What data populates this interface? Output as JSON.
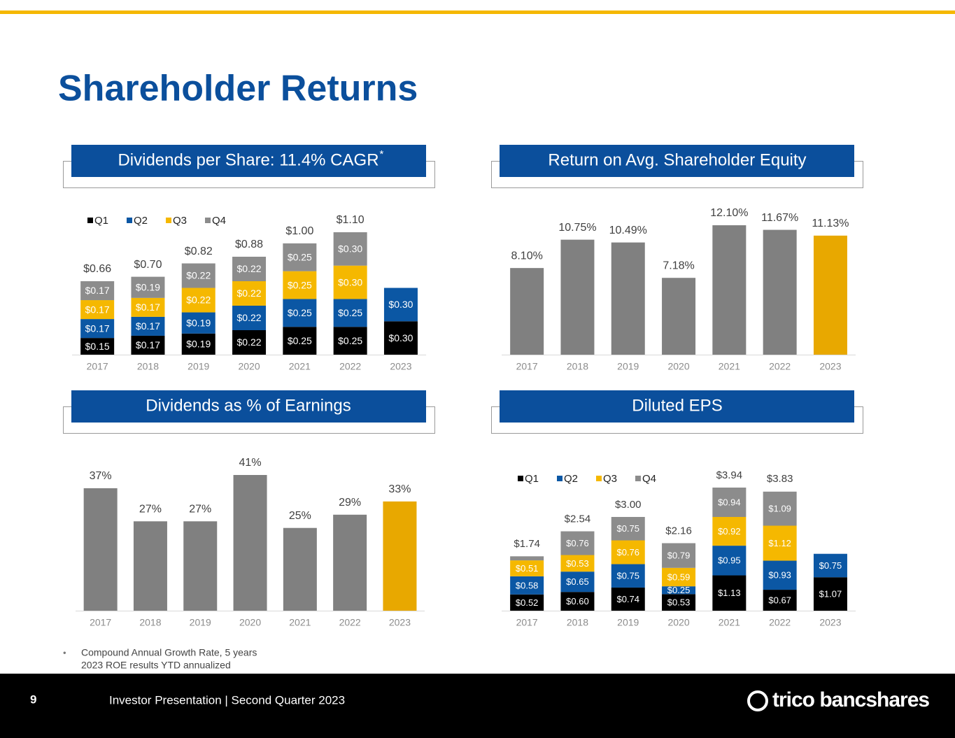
{
  "title": "Shareholder Returns",
  "chart_data": [
    {
      "type": "stacked_bar",
      "title": "Dividends per Share: 11.4% CAGR",
      "title_superscript": "*",
      "categories": [
        "2017",
        "2018",
        "2019",
        "2020",
        "2021",
        "2022",
        "2023"
      ],
      "series": [
        {
          "name": "Q1",
          "color": "#000000",
          "values": [
            0.15,
            0.17,
            0.19,
            0.22,
            0.25,
            0.25,
            0.3
          ],
          "value_labels": [
            "$0.15",
            "$0.17",
            "$0.19",
            "$0.22",
            "$0.25",
            "$0.25",
            "$0.30"
          ]
        },
        {
          "name": "Q2",
          "color": "#0b57a4",
          "values": [
            0.17,
            0.17,
            0.19,
            0.22,
            0.25,
            0.25,
            0.3
          ],
          "value_labels": [
            "$0.17",
            "$0.17",
            "$0.19",
            "$0.22",
            "$0.25",
            "$0.25",
            "$0.30"
          ]
        },
        {
          "name": "Q3",
          "color": "#f5b800",
          "values": [
            0.17,
            0.17,
            0.22,
            0.22,
            0.25,
            0.3,
            null
          ],
          "value_labels": [
            "$0.17",
            "$0.17",
            "$0.22",
            "$0.22",
            "$0.25",
            "$0.30",
            null
          ]
        },
        {
          "name": "Q4",
          "color": "#8c8c8c",
          "values": [
            0.17,
            0.19,
            0.22,
            0.22,
            0.25,
            0.3,
            null
          ],
          "value_labels": [
            "$0.17",
            "$0.19",
            "$0.22",
            "$0.22",
            "$0.25",
            "$0.30",
            null
          ]
        }
      ],
      "totals": [
        0.66,
        0.7,
        0.82,
        0.88,
        1.0,
        1.1,
        null
      ],
      "total_labels": [
        "$0.66",
        "$0.70",
        "$0.82",
        "$0.88",
        "$1.00",
        "$1.10",
        null
      ],
      "legend": "top-left"
    },
    {
      "type": "bar",
      "title": "Return on Avg. Shareholder Equity",
      "categories": [
        "2017",
        "2018",
        "2019",
        "2020",
        "2021",
        "2022",
        "2023"
      ],
      "values": [
        8.1,
        10.75,
        10.49,
        7.18,
        12.1,
        11.67,
        11.13
      ],
      "value_labels": [
        "8.10%",
        "10.75%",
        "10.49%",
        "7.18%",
        "12.10%",
        "11.67%",
        "11.13%"
      ],
      "colors": [
        "#808080",
        "#808080",
        "#808080",
        "#808080",
        "#808080",
        "#808080",
        "#e8a800"
      ]
    },
    {
      "type": "bar",
      "title": "Dividends as % of Earnings",
      "categories": [
        "2017",
        "2018",
        "2019",
        "2020",
        "2021",
        "2022",
        "2023"
      ],
      "values": [
        37,
        27,
        27,
        41,
        25,
        29,
        33
      ],
      "value_labels": [
        "37%",
        "27%",
        "27%",
        "41%",
        "25%",
        "29%",
        "33%"
      ],
      "colors": [
        "#808080",
        "#808080",
        "#808080",
        "#808080",
        "#808080",
        "#808080",
        "#e8a800"
      ]
    },
    {
      "type": "stacked_bar",
      "title": "Diluted EPS",
      "categories": [
        "2017",
        "2018",
        "2019",
        "2020",
        "2021",
        "2022",
        "2023"
      ],
      "series": [
        {
          "name": "Q1",
          "color": "#000000",
          "values": [
            0.52,
            0.6,
            0.74,
            0.53,
            1.13,
            0.67,
            1.07
          ],
          "value_labels": [
            "$0.52",
            "$0.60",
            "$0.74",
            "$0.53",
            "$1.13",
            "$0.67",
            "$1.07"
          ]
        },
        {
          "name": "Q2",
          "color": "#0b57a4",
          "values": [
            0.58,
            0.65,
            0.75,
            0.25,
            0.95,
            0.93,
            0.75
          ],
          "value_labels": [
            "$0.58",
            "$0.65",
            "$0.75",
            "$0.25",
            "$0.95",
            "$0.93",
            "$0.75"
          ]
        },
        {
          "name": "Q3",
          "color": "#f5b800",
          "values": [
            0.51,
            0.53,
            0.76,
            0.59,
            0.92,
            1.12,
            null
          ],
          "value_labels": [
            "$0.51",
            "$0.53",
            "$0.76",
            "$0.59",
            "$0.92",
            "$1.12",
            null
          ]
        },
        {
          "name": "Q4",
          "color": "#8c8c8c",
          "values": [
            0.13,
            0.76,
            0.75,
            0.79,
            0.94,
            1.09,
            null
          ],
          "value_labels": [
            null,
            "$0.76",
            "$0.75",
            "$0.79",
            "$0.94",
            "$1.09",
            null
          ]
        }
      ],
      "totals": [
        1.74,
        2.54,
        3.0,
        2.16,
        3.94,
        3.83,
        null
      ],
      "total_labels": [
        "$1.74",
        "$2.54",
        "$3.00",
        "$2.16",
        "$3.94",
        "$3.83",
        null
      ],
      "legend": "top-left"
    }
  ],
  "footnotes": [
    "Compound Annual Growth Rate, 5 years",
    "2023 ROE results YTD annualized"
  ],
  "footer": {
    "page": "9",
    "text": "Investor Presentation | Second Quarter 2023",
    "logo": "trico bancshares"
  }
}
